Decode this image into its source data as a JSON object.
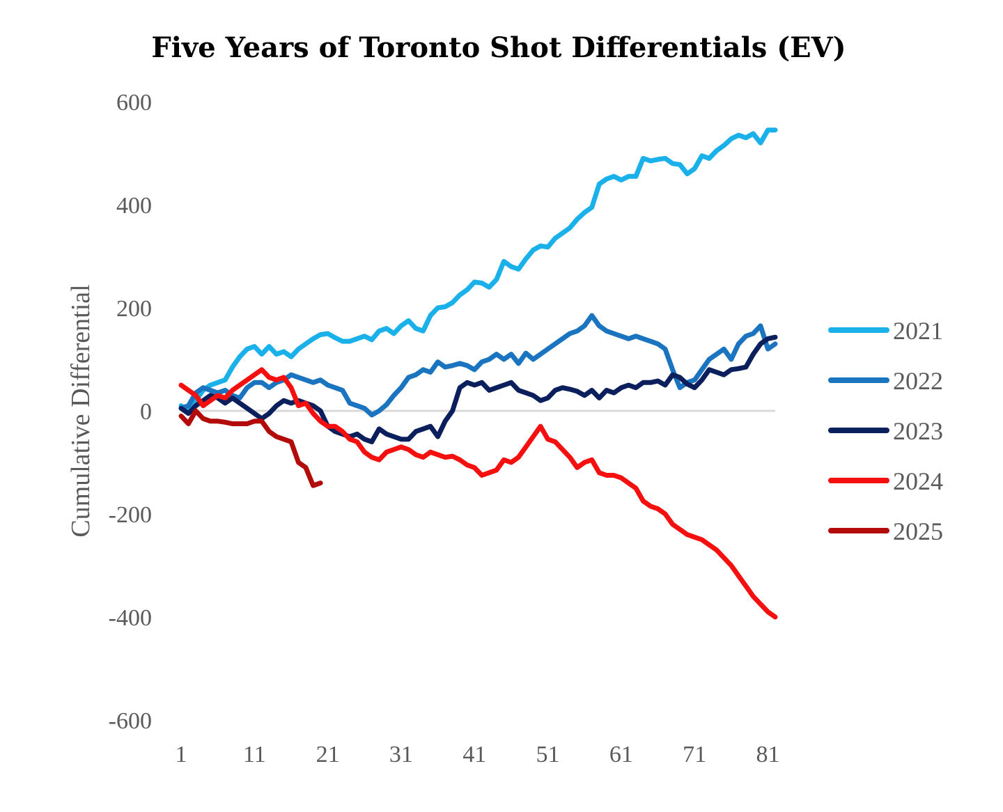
{
  "chart_data": {
    "type": "line",
    "title": "Five Years of Toronto Shot Differentials (EV)",
    "xlabel": "",
    "ylabel": "Cumulative Differential",
    "xlim": [
      1,
      82
    ],
    "ylim": [
      -600,
      600
    ],
    "x_ticks": [
      "1",
      "11",
      "21",
      "31",
      "41",
      "51",
      "61",
      "71",
      "81"
    ],
    "y_ticks": [
      "600",
      "400",
      "200",
      "0",
      "-200",
      "-400",
      "-600"
    ],
    "zero_line": true,
    "grid": false,
    "legend_position": "right",
    "series": [
      {
        "name": "2021",
        "color": "#1ab0ea",
        "values": [
          10,
          0,
          20,
          40,
          50,
          55,
          60,
          85,
          105,
          120,
          125,
          110,
          125,
          110,
          115,
          105,
          120,
          130,
          140,
          148,
          150,
          142,
          135,
          135,
          140,
          145,
          138,
          155,
          160,
          150,
          165,
          175,
          160,
          155,
          185,
          200,
          202,
          210,
          225,
          235,
          250,
          248,
          240,
          255,
          290,
          280,
          275,
          295,
          312,
          320,
          318,
          335,
          345,
          355,
          372,
          385,
          395,
          440,
          450,
          455,
          448,
          455,
          455,
          490,
          485,
          488,
          490,
          480,
          478,
          460,
          470,
          495,
          490,
          505,
          515,
          528,
          535,
          530,
          538,
          520,
          545,
          545
        ]
      },
      {
        "name": "2022",
        "color": "#1b74c0",
        "values": [
          5,
          10,
          35,
          45,
          40,
          35,
          40,
          30,
          25,
          45,
          55,
          55,
          45,
          55,
          60,
          70,
          65,
          60,
          55,
          60,
          50,
          45,
          40,
          15,
          10,
          5,
          -8,
          0,
          12,
          30,
          45,
          65,
          70,
          80,
          75,
          95,
          85,
          88,
          92,
          88,
          80,
          95,
          100,
          110,
          100,
          110,
          92,
          112,
          100,
          110,
          120,
          130,
          140,
          150,
          155,
          165,
          185,
          165,
          155,
          150,
          145,
          140,
          145,
          140,
          135,
          130,
          120,
          80,
          45,
          55,
          60,
          80,
          100,
          110,
          120,
          100,
          130,
          145,
          150,
          165,
          120,
          130
        ]
      },
      {
        "name": "2023",
        "color": "#0b1f5c",
        "values": [
          5,
          -5,
          10,
          20,
          30,
          25,
          15,
          25,
          15,
          5,
          -5,
          -15,
          -5,
          10,
          20,
          15,
          20,
          15,
          10,
          0,
          -30,
          -40,
          -45,
          -50,
          -45,
          -55,
          -60,
          -35,
          -45,
          -50,
          -55,
          -55,
          -40,
          -35,
          -30,
          -50,
          -20,
          0,
          45,
          55,
          50,
          55,
          40,
          45,
          50,
          55,
          40,
          35,
          30,
          20,
          25,
          40,
          45,
          42,
          38,
          30,
          40,
          25,
          40,
          35,
          45,
          50,
          45,
          55,
          55,
          58,
          50,
          70,
          65,
          52,
          45,
          60,
          80,
          75,
          70,
          80,
          82,
          85,
          110,
          130,
          140,
          143
        ]
      },
      {
        "name": "2024",
        "color": "#f51010",
        "values": [
          50,
          40,
          30,
          10,
          20,
          30,
          25,
          40,
          50,
          60,
          70,
          80,
          65,
          60,
          65,
          45,
          10,
          15,
          -5,
          -20,
          -30,
          -30,
          -40,
          -55,
          -60,
          -80,
          -90,
          -95,
          -80,
          -75,
          -70,
          -75,
          -85,
          -90,
          -80,
          -85,
          -90,
          -88,
          -95,
          -105,
          -110,
          -125,
          -120,
          -115,
          -95,
          -100,
          -90,
          -70,
          -50,
          -30,
          -55,
          -60,
          -75,
          -90,
          -110,
          -100,
          -95,
          -120,
          -125,
          -125,
          -130,
          -140,
          -150,
          -175,
          -185,
          -190,
          -200,
          -220,
          -230,
          -240,
          -245,
          -250,
          -260,
          -270,
          -285,
          -300,
          -320,
          -340,
          -360,
          -375,
          -390,
          -400
        ]
      },
      {
        "name": "2025",
        "color": "#b30a0a",
        "values": [
          -10,
          -25,
          0,
          -15,
          -20,
          -20,
          -22,
          -25,
          -25,
          -25,
          -20,
          -20,
          -40,
          -50,
          -55,
          -60,
          -100,
          -110,
          -145,
          -140
        ]
      }
    ]
  }
}
